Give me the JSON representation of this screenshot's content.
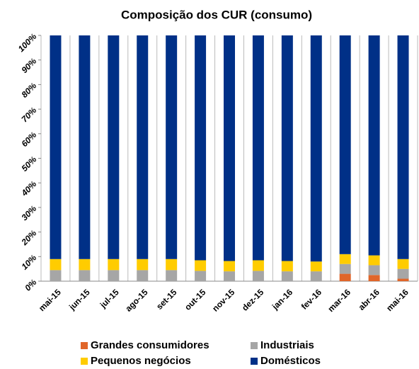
{
  "chart_data": {
    "type": "stacked_bar",
    "title": "Composição dos CUR (consumo)",
    "categories": [
      "mai-15",
      "jun-15",
      "jul-15",
      "ago-15",
      "set-15",
      "out-15",
      "nov-15",
      "dez-15",
      "jan-16",
      "fev-16",
      "mar-16",
      "abr-16",
      "mai-16"
    ],
    "series": [
      {
        "name": "Grandes consumidores",
        "color": "#e0662a",
        "values": [
          0,
          0,
          0,
          0,
          0,
          0,
          0,
          0,
          0,
          0,
          3,
          2.5,
          1
        ]
      },
      {
        "name": "Industriais",
        "color": "#a6a6a6",
        "values": [
          4.5,
          4.5,
          4.5,
          4.5,
          4.5,
          4.2,
          4,
          4.2,
          4,
          4,
          4,
          4,
          4
        ]
      },
      {
        "name": "Pequenos negócios",
        "color": "#ffcc00",
        "values": [
          4.5,
          4.5,
          4.5,
          4.5,
          4.5,
          4.3,
          4.2,
          4.3,
          4.2,
          4,
          4,
          4,
          4
        ]
      },
      {
        "name": "Domésticos",
        "color": "#003087",
        "values": [
          91,
          91,
          91,
          91,
          91,
          91.5,
          91.8,
          91.5,
          91.8,
          92,
          89,
          89.5,
          91
        ]
      }
    ],
    "ylim": [
      0,
      100
    ],
    "yticks": [
      {
        "value": 0,
        "label": "0%"
      },
      {
        "value": 10,
        "label": "10%"
      },
      {
        "value": 20,
        "label": "20%"
      },
      {
        "value": 30,
        "label": "30%"
      },
      {
        "value": 40,
        "label": "40%"
      },
      {
        "value": 50,
        "label": "50%"
      },
      {
        "value": 60,
        "label": "60%"
      },
      {
        "value": 70,
        "label": "70%"
      },
      {
        "value": 80,
        "label": "80%"
      },
      {
        "value": 90,
        "label": "90%"
      },
      {
        "value": 100,
        "label": "100%"
      }
    ]
  }
}
